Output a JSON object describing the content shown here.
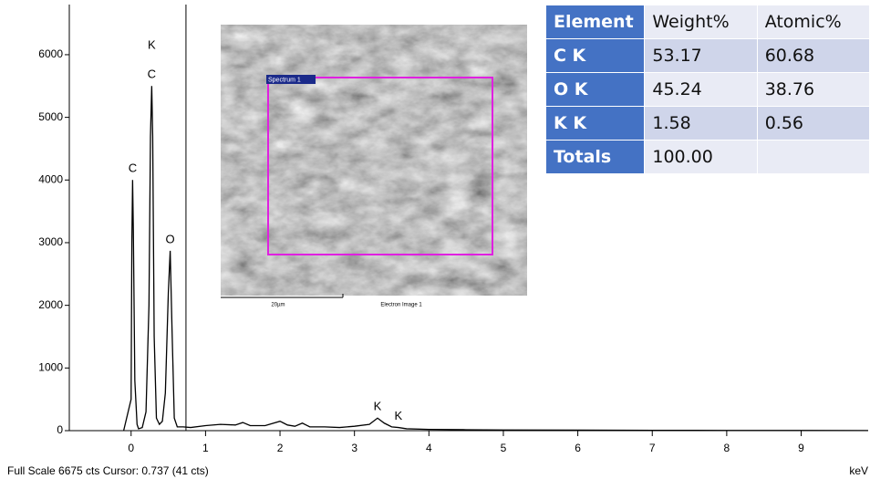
{
  "chart_data": {
    "type": "line",
    "x": [
      -0.1,
      0,
      0.01,
      0.02,
      0.03,
      0.05,
      0.08,
      0.1,
      0.15,
      0.2,
      0.24,
      0.26,
      0.277,
      0.29,
      0.31,
      0.34,
      0.38,
      0.42,
      0.46,
      0.5,
      0.525,
      0.55,
      0.58,
      0.62,
      0.7,
      0.8,
      1.0,
      1.2,
      1.4,
      1.5,
      1.6,
      1.8,
      2.0,
      2.05,
      2.1,
      2.2,
      2.3,
      2.35,
      2.4,
      2.6,
      2.8,
      3.0,
      3.2,
      3.31,
      3.4,
      3.5,
      3.59,
      3.7,
      4.0,
      4.5,
      5.0,
      6.0,
      7.0,
      8.0,
      9.0,
      9.9
    ],
    "series": [
      {
        "color": "#000000",
        "values": [
          0,
          500,
          3000,
          4000,
          3200,
          800,
          100,
          30,
          50,
          300,
          2000,
          4700,
          5500,
          4700,
          1500,
          200,
          100,
          150,
          600,
          2200,
          2870,
          1600,
          200,
          60,
          60,
          50,
          80,
          100,
          90,
          130,
          80,
          80,
          150,
          120,
          90,
          70,
          120,
          90,
          60,
          60,
          50,
          70,
          100,
          200,
          120,
          60,
          50,
          30,
          20,
          15,
          10,
          8,
          5,
          4,
          3,
          2
        ]
      }
    ],
    "xlim": [
      -0.83,
      9.9
    ],
    "ylim": [
      0,
      6800
    ],
    "xticks": [
      0,
      1,
      2,
      3,
      4,
      5,
      6,
      7,
      8,
      9
    ],
    "yticks": [
      0,
      1000,
      2000,
      3000,
      4000,
      5000,
      6000
    ],
    "x_label": "keV",
    "footer": "Full Scale 6675 cts Cursor: 0.737  (41 cts)",
    "cursor": 0.737,
    "annotations": [
      {
        "text": "C",
        "x": 0.02
      },
      {
        "text": "C",
        "x": 0.277
      },
      {
        "text": "K",
        "x": 0.277
      },
      {
        "text": "O",
        "x": 0.525
      },
      {
        "text": "K",
        "x": 3.31
      },
      {
        "text": "K",
        "x": 3.59
      }
    ]
  },
  "inset": {
    "spectrum_label": "Spectrum 1",
    "scale_bar": "20µm",
    "caption": "Electron Image 1"
  },
  "table": {
    "columns": [
      "Element",
      "Weight%",
      "Atomic%"
    ],
    "rows": [
      [
        "C K",
        "53.17",
        "60.68"
      ],
      [
        "O K",
        "45.24",
        "38.76"
      ],
      [
        "K K",
        "1.58",
        "0.56"
      ],
      [
        "Totals",
        "100.00",
        ""
      ]
    ]
  }
}
